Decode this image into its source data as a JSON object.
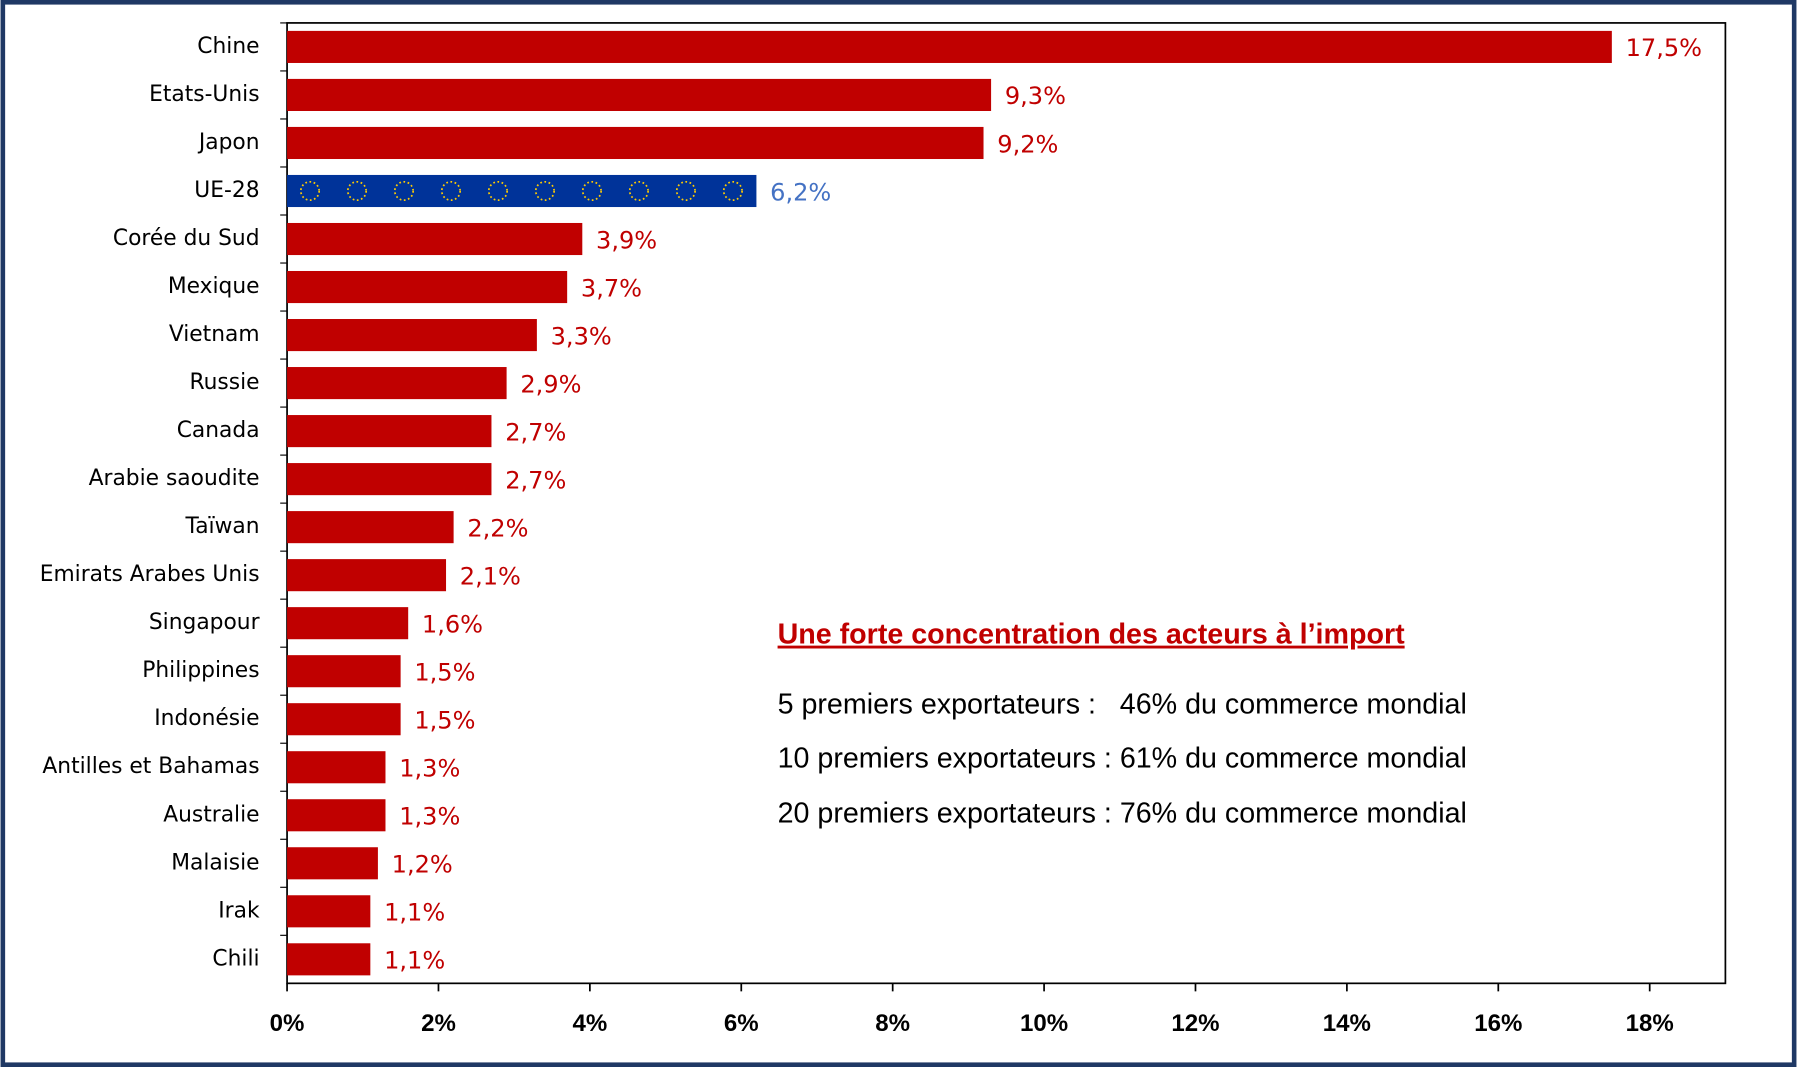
{
  "chart_data": {
    "type": "bar",
    "orientation": "horizontal",
    "categories": [
      "Chine",
      "Etats-Unis",
      "Japon",
      "UE-28",
      "Corée du Sud",
      "Mexique",
      "Vietnam",
      "Russie",
      "Canada",
      "Arabie saoudite",
      "Taïwan",
      "Emirats Arabes Unis",
      "Singapour",
      "Philippines",
      "Indonésie",
      "Antilles et Bahamas",
      "Australie",
      "Malaisie",
      "Irak",
      "Chili"
    ],
    "values": [
      17.5,
      9.3,
      9.2,
      6.2,
      3.9,
      3.7,
      3.3,
      2.9,
      2.7,
      2.7,
      2.2,
      2.1,
      1.6,
      1.5,
      1.5,
      1.3,
      1.3,
      1.2,
      1.1,
      1.1
    ],
    "value_labels": [
      "17,5%",
      "9,3%",
      "9,2%",
      "6,2%",
      "3,9%",
      "3,7%",
      "3,3%",
      "2,9%",
      "2,7%",
      "2,7%",
      "2,2%",
      "2,1%",
      "1,6%",
      "1,5%",
      "1,5%",
      "1,3%",
      "1,3%",
      "1,2%",
      "1,1%",
      "1,1%"
    ],
    "colors": [
      "#c00000",
      "#c00000",
      "#c00000",
      "#003399",
      "#c00000",
      "#c00000",
      "#c00000",
      "#c00000",
      "#c00000",
      "#c00000",
      "#c00000",
      "#c00000",
      "#c00000",
      "#c00000",
      "#c00000",
      "#c00000",
      "#c00000",
      "#c00000",
      "#c00000",
      "#c00000"
    ],
    "value_label_colors": [
      "#c00000",
      "#c00000",
      "#c00000",
      "#4472c4",
      "#c00000",
      "#c00000",
      "#c00000",
      "#c00000",
      "#c00000",
      "#c00000",
      "#c00000",
      "#c00000",
      "#c00000",
      "#c00000",
      "#c00000",
      "#c00000",
      "#c00000",
      "#c00000",
      "#c00000",
      "#c00000"
    ],
    "xlim": [
      0,
      19
    ],
    "xticks": [
      {
        "value": 0,
        "label": "0%"
      },
      {
        "value": 2,
        "label": "2%"
      },
      {
        "value": 4,
        "label": "4%"
      },
      {
        "value": 6,
        "label": "6%"
      },
      {
        "value": 8,
        "label": "8%"
      },
      {
        "value": 10,
        "label": "10%"
      },
      {
        "value": 12,
        "label": "12%"
      },
      {
        "value": 14,
        "label": "14%"
      },
      {
        "value": 16,
        "label": "16%"
      },
      {
        "value": 18,
        "label": "18%"
      }
    ],
    "annotation": {
      "title": "Une forte concentration des acteurs à l’import",
      "lines": [
        "5 premiers exportateurs :   46% du commerce mondial",
        "10 premiers exportateurs : 61% du commerce mondial",
        "20 premiers exportateurs : 76% du commerce mondial"
      ]
    }
  }
}
